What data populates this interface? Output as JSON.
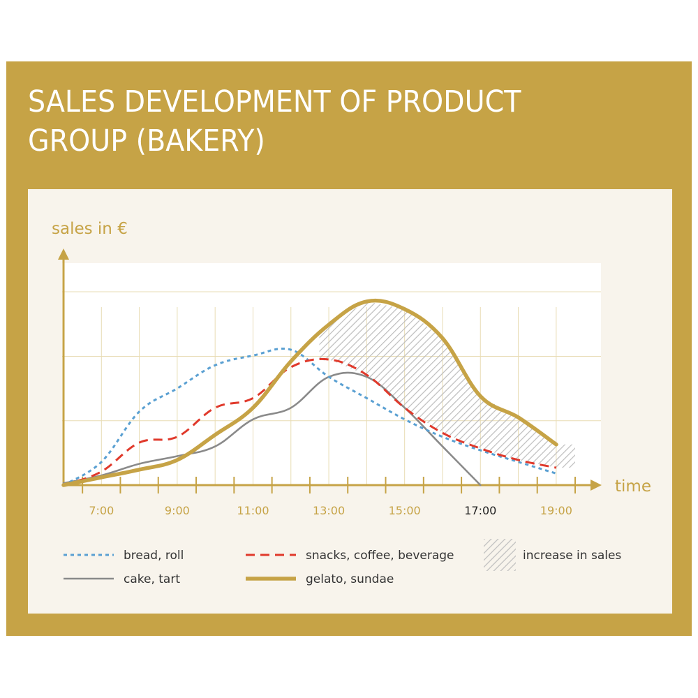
{
  "title": "SALES DEVELOPMENT OF PRODUCT GROUP (BAKERY)",
  "colors": {
    "frame": "#c6a346",
    "panel": "#f8f4ec",
    "plot": "#ffffff",
    "axis": "#c6a346",
    "grid": "#e8dcb4",
    "bread": "#5aa0d2",
    "snacks": "#e0392b",
    "cake": "#8a8a8a",
    "gelato": "#c6a346",
    "hatch": "#bdbdbd",
    "tick_label": "#c6a346",
    "tick_label_highlight": "#222222",
    "legend_text": "#333333"
  },
  "chart_data": {
    "type": "line",
    "title": "SALES DEVELOPMENT OF PRODUCT GROUP (BAKERY)",
    "xlabel": "time",
    "ylabel": "sales in €",
    "x_tick_labels": [
      "7:00",
      "9:00",
      "11:00",
      "13:00",
      "15:00",
      "17:00",
      "19:00"
    ],
    "x_tick_values": [
      7,
      9,
      11,
      13,
      15,
      17,
      19
    ],
    "highlighted_tick": "17:00",
    "xlim": [
      5.9,
      20.1
    ],
    "ylim": [
      0,
      100
    ],
    "y_ticks_labeled": false,
    "grid": true,
    "legend_position": "bottom",
    "series": [
      {
        "name": "bread, roll",
        "style": "dotted",
        "points": [
          [
            6,
            0
          ],
          [
            7,
            12
          ],
          [
            8,
            38
          ],
          [
            9,
            50
          ],
          [
            10,
            62
          ],
          [
            11,
            67
          ],
          [
            12,
            70
          ],
          [
            13,
            56
          ],
          [
            14,
            45
          ],
          [
            15,
            34
          ],
          [
            16,
            25
          ],
          [
            17,
            18
          ],
          [
            18,
            12
          ],
          [
            19,
            6
          ]
        ]
      },
      {
        "name": "snacks, coffee, beverage",
        "style": "dashed",
        "points": [
          [
            6,
            0
          ],
          [
            7,
            7
          ],
          [
            8,
            22
          ],
          [
            9,
            25
          ],
          [
            10,
            40
          ],
          [
            11,
            45
          ],
          [
            12,
            61
          ],
          [
            13,
            65
          ],
          [
            14,
            57
          ],
          [
            15,
            40
          ],
          [
            16,
            27
          ],
          [
            17,
            19
          ],
          [
            18,
            13
          ],
          [
            19,
            9
          ]
        ]
      },
      {
        "name": "cake, tart",
        "style": "solid",
        "points": [
          [
            6,
            1
          ],
          [
            7,
            5
          ],
          [
            8,
            11
          ],
          [
            9,
            15
          ],
          [
            10,
            20
          ],
          [
            11,
            34
          ],
          [
            12,
            40
          ],
          [
            13,
            56
          ],
          [
            14,
            56
          ],
          [
            15,
            40
          ],
          [
            16,
            20
          ],
          [
            17,
            0
          ]
        ]
      },
      {
        "name": "gelato, sundae",
        "style": "bold",
        "points": [
          [
            6,
            0
          ],
          [
            7,
            4
          ],
          [
            8,
            8
          ],
          [
            9,
            13
          ],
          [
            10,
            26
          ],
          [
            11,
            40
          ],
          [
            12,
            64
          ],
          [
            13,
            83
          ],
          [
            14,
            95
          ],
          [
            15,
            91
          ],
          [
            16,
            76
          ],
          [
            17,
            46
          ],
          [
            18,
            35
          ],
          [
            19,
            21
          ]
        ]
      }
    ],
    "area": {
      "name": "increase in sales",
      "between": [
        "gelato, sundae",
        "snacks, coffee, beverage"
      ],
      "x_range": [
        13,
        19
      ]
    }
  },
  "legend": [
    {
      "label": "bread, roll",
      "key": "bread"
    },
    {
      "label": "snacks, coffee, beverage",
      "key": "snacks"
    },
    {
      "label": "increase in sales",
      "key": "hatch"
    },
    {
      "label": "cake, tart",
      "key": "cake"
    },
    {
      "label": "gelato, sundae",
      "key": "gelato"
    }
  ]
}
